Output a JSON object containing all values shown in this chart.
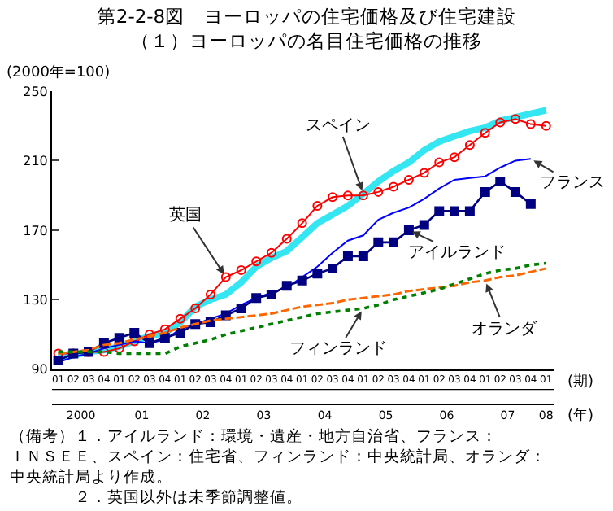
{
  "chart_data": {
    "type": "line",
    "title": "第2-2-8図　ヨーロッパの住宅価格及び住宅建設",
    "subtitle": "（１）ヨーロッパの名目住宅価格の推移",
    "ylabel": "(2000年=100)",
    "xlabel": "(期)",
    "x2label": "(年)",
    "x": [
      "2000-01",
      "2000-04",
      "2000-07",
      "2000-10",
      "2001-01",
      "2001-04",
      "2001-07",
      "2001-10",
      "2002-01",
      "2002-04",
      "2002-07",
      "2002-10",
      "2003-01",
      "2003-04",
      "2003-07",
      "2003-10",
      "2004-01",
      "2004-04",
      "2004-07",
      "2004-10",
      "2005-01",
      "2005-04",
      "2005-07",
      "2005-10",
      "2006-01",
      "2006-04",
      "2006-07",
      "2006-10",
      "2007-01",
      "2007-04",
      "2007-07",
      "2007-10",
      "2008-01"
    ],
    "xlim": [
      "1999-11-25",
      "2008-02-20"
    ],
    "xticks": [
      {
        "value": "2000-01",
        "label": "01"
      },
      {
        "value": "2000-04",
        "label": "02"
      },
      {
        "value": "2000-07",
        "label": "03"
      },
      {
        "value": "2000-10",
        "label": "04"
      },
      {
        "value": "2001-01",
        "label": "01"
      },
      {
        "value": "2001-04",
        "label": "02"
      },
      {
        "value": "2001-07",
        "label": "03"
      },
      {
        "value": "2001-10",
        "label": "04"
      },
      {
        "value": "2002-01",
        "label": "01"
      },
      {
        "value": "2002-04",
        "label": "02"
      },
      {
        "value": "2002-07",
        "label": "03"
      },
      {
        "value": "2002-10",
        "label": "04"
      },
      {
        "value": "2003-01",
        "label": "01"
      },
      {
        "value": "2003-04",
        "label": "02"
      },
      {
        "value": "2003-07",
        "label": "03"
      },
      {
        "value": "2003-10",
        "label": "04"
      },
      {
        "value": "2004-01",
        "label": "01"
      },
      {
        "value": "2004-04",
        "label": "02"
      },
      {
        "value": "2004-07",
        "label": "03"
      },
      {
        "value": "2004-10",
        "label": "04"
      },
      {
        "value": "2005-01",
        "label": "01"
      },
      {
        "value": "2005-04",
        "label": "02"
      },
      {
        "value": "2005-07",
        "label": "03"
      },
      {
        "value": "2005-10",
        "label": "04"
      },
      {
        "value": "2006-01",
        "label": "01"
      },
      {
        "value": "2006-04",
        "label": "02"
      },
      {
        "value": "2006-07",
        "label": "03"
      },
      {
        "value": "2006-10",
        "label": "04"
      },
      {
        "value": "2007-01",
        "label": "01"
      },
      {
        "value": "2007-04",
        "label": "02"
      },
      {
        "value": "2007-07",
        "label": "03"
      },
      {
        "value": "2007-10",
        "label": "04"
      },
      {
        "value": "2008-01",
        "label": "01"
      }
    ],
    "x2lim": [
      "1999-11-25",
      "2008-02-20"
    ],
    "x2ticks": [
      {
        "value": "2000-05-16",
        "label": "2000"
      },
      {
        "value": "2001-05-16",
        "label": "01"
      },
      {
        "value": "2002-05-16",
        "label": "02"
      },
      {
        "value": "2003-05-16",
        "label": "03"
      },
      {
        "value": "2004-05-16",
        "label": "04"
      },
      {
        "value": "2005-05-16",
        "label": "05"
      },
      {
        "value": "2006-05-16",
        "label": "06"
      },
      {
        "value": "2007-05-16",
        "label": "07"
      },
      {
        "value": "2008-01",
        "label": "08"
      }
    ],
    "ylim": [
      90,
      250
    ],
    "yticks": [
      90,
      130,
      170,
      210,
      250
    ],
    "grid": false,
    "legend": false,
    "series": [
      {
        "name": "スペイン",
        "color": "#33e6f2",
        "values": [
          97,
          98,
          100,
          101,
          103,
          106,
          109,
          111,
          117,
          126,
          130,
          133,
          140,
          149,
          154,
          158,
          166,
          174,
          179,
          184,
          191,
          198,
          204,
          209,
          216,
          221,
          224,
          227,
          229,
          233,
          235,
          237,
          239
        ]
      },
      {
        "name": "英国",
        "color": "#ff0000",
        "marker": "circle",
        "values": [
          99,
          99,
          100,
          100,
          102,
          106,
          110,
          113,
          119,
          125,
          133,
          143,
          147,
          152,
          157,
          165,
          174,
          184,
          189,
          190,
          190,
          192,
          195,
          199,
          203,
          209,
          212,
          219,
          226,
          232,
          234,
          231,
          230
        ]
      },
      {
        "name": "フランス",
        "color": "#0000ff",
        "values": [
          94,
          97,
          99,
          102,
          104,
          106,
          105,
          107,
          113,
          116,
          119,
          122,
          127,
          131,
          134,
          137,
          143,
          149,
          157,
          164,
          167,
          176,
          180,
          183,
          188,
          194,
          199,
          200,
          201,
          206,
          210,
          211,
          null
        ]
      },
      {
        "name": "アイルランド",
        "color": "#000080",
        "marker": "square",
        "values": [
          95,
          99,
          100,
          105,
          108,
          111,
          105,
          108,
          111,
          116,
          117,
          121,
          125,
          131,
          133,
          138,
          141,
          145,
          148,
          155,
          155,
          163,
          163,
          170,
          173,
          181,
          181,
          181,
          192,
          198,
          192,
          185,
          null
        ]
      },
      {
        "name": "オランダ",
        "color": "#ff6600",
        "line_style": "dashed",
        "values": [
          99,
          100,
          101,
          104,
          105,
          107,
          109,
          111,
          114,
          116,
          118,
          119,
          120,
          121,
          122,
          124,
          126,
          127,
          128,
          130,
          131,
          132,
          133,
          135,
          136,
          137,
          138,
          140,
          141,
          143,
          144,
          146,
          148
        ]
      },
      {
        "name": "フィンランド",
        "color": "#008000",
        "line_style": "dotted",
        "values": [
          100,
          100,
          100,
          100,
          99,
          99,
          99,
          99,
          103,
          105,
          107,
          110,
          112,
          114,
          116,
          118,
          120,
          122,
          123,
          124,
          125,
          127,
          130,
          132,
          134,
          136,
          139,
          142,
          145,
          147,
          148,
          150,
          151
        ]
      }
    ],
    "annotations": [
      "（備考）１．アイルランド：環境・遺産・地方自治省、フランス：ＩＮＳＥＥ、スペイン：住宅省、フィンランド：中央統計局、オランダ：中央統計局より作成。",
      "　　　　２．英国以外は未季節調整値。"
    ]
  }
}
